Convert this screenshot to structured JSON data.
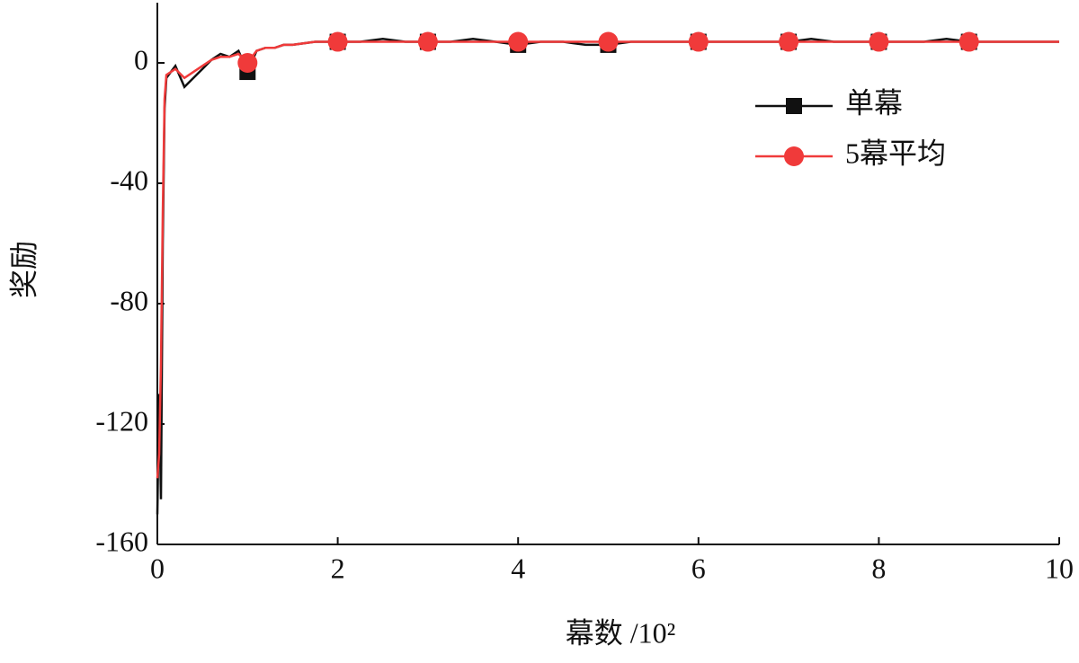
{
  "chart_data": {
    "type": "line",
    "x_label": "幕数 /10²",
    "y_label": "奖励",
    "x": [
      0,
      0.02,
      0.04,
      0.06,
      0.08,
      0.1,
      0.15,
      0.2,
      0.3,
      0.4,
      0.5,
      0.6,
      0.7,
      0.8,
      0.9,
      1,
      1.1,
      1.2,
      1.3,
      1.4,
      1.5,
      1.75,
      2,
      2.25,
      2.5,
      2.75,
      3,
      3.25,
      3.5,
      3.75,
      4,
      4.25,
      4.5,
      4.75,
      5,
      5.25,
      5.5,
      5.75,
      6,
      6.25,
      6.5,
      6.75,
      7,
      7.25,
      7.5,
      7.75,
      8,
      8.25,
      8.5,
      8.75,
      9,
      9.25,
      9.5,
      9.75,
      10
    ],
    "series": [
      {
        "name": "单幕",
        "color": "#111111",
        "marker": "square",
        "values": [
          -150,
          -110,
          -145,
          -60,
          -15,
          -5,
          -3,
          -1,
          -8,
          -5,
          -2,
          1,
          3,
          2,
          4,
          -3,
          4,
          5,
          5,
          6,
          6,
          7,
          7,
          7,
          8,
          7,
          7,
          7,
          8,
          7,
          6,
          7,
          7,
          6,
          6,
          7,
          7,
          7,
          7,
          7,
          7,
          7,
          7,
          8,
          7,
          7,
          7,
          7,
          7,
          8,
          7,
          7,
          7,
          7,
          7
        ]
      },
      {
        "name": "5幕平均",
        "color": "#f03a3a",
        "marker": "circle",
        "values": [
          -138,
          -130,
          -100,
          -50,
          -12,
          -4,
          -3,
          -2,
          -5,
          -3,
          -1,
          1,
          2,
          2,
          3,
          0,
          4,
          5,
          5,
          6,
          6,
          7,
          7,
          7,
          7,
          7,
          7,
          7,
          7,
          7,
          7,
          7,
          7,
          7,
          7,
          7,
          7,
          7,
          7,
          7,
          7,
          7,
          7,
          7,
          7,
          7,
          7,
          7,
          7,
          7,
          7,
          7,
          7,
          7,
          7
        ]
      }
    ],
    "xlim": [
      0,
      10
    ],
    "xticks": [
      0,
      2,
      4,
      6,
      8,
      10
    ],
    "ylim": [
      -160,
      20
    ],
    "yticks": [
      -160,
      -120,
      -80,
      -40,
      0
    ],
    "legend": "upper-right",
    "grid": false
  }
}
